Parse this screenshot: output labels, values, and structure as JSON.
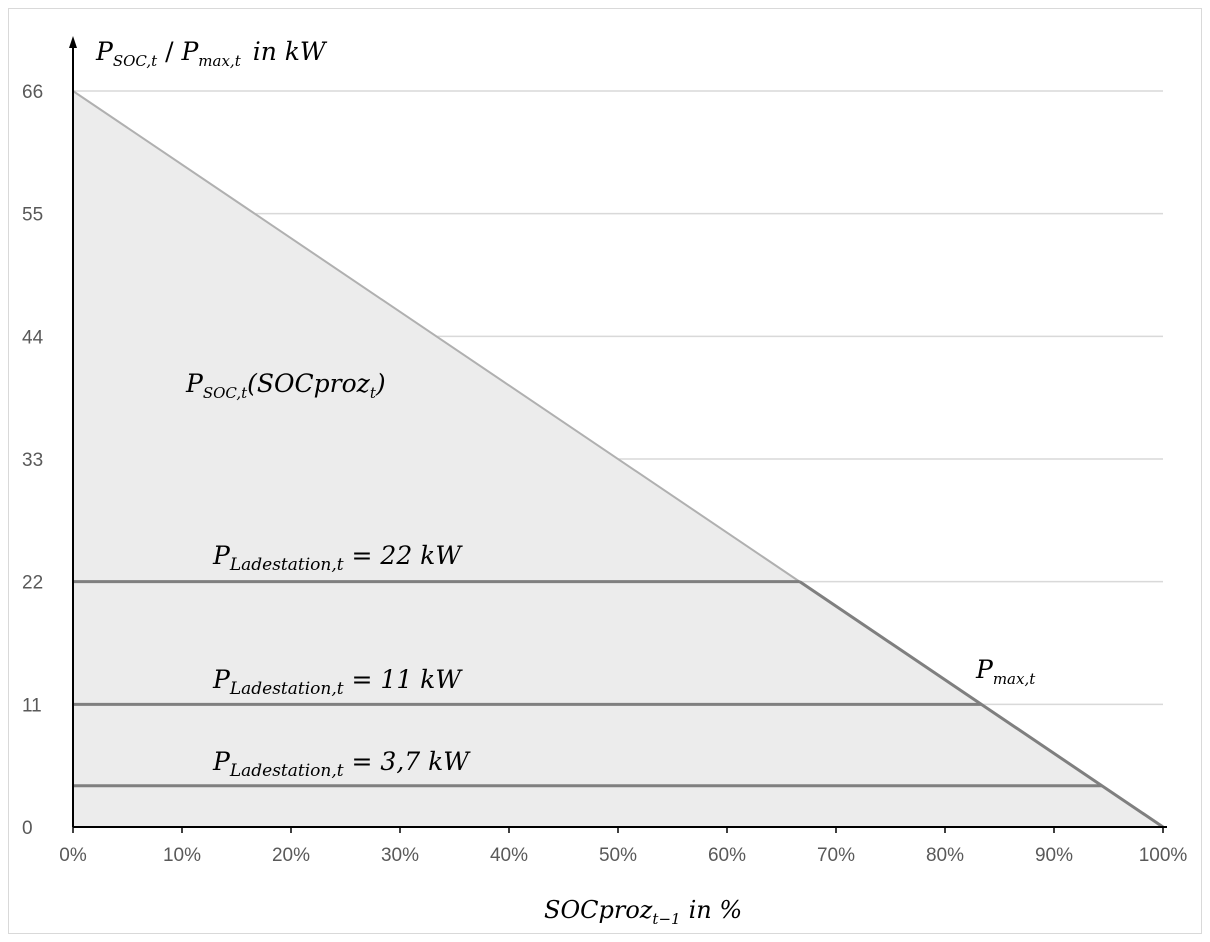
{
  "chart_data": {
    "type": "line",
    "ylabel": {
      "main": "P",
      "sub1": "SOC,t",
      "sep": " / ",
      "main2": "P",
      "sub2": "max,t",
      "unit": "in kW"
    },
    "xlabel": {
      "main": "SOCproz",
      "sub": "t−1",
      "unit": "in %"
    },
    "x_ticks": [
      "0%",
      "10%",
      "20%",
      "30%",
      "40%",
      "50%",
      "60%",
      "70%",
      "80%",
      "90%",
      "100%"
    ],
    "y_ticks": [
      "0",
      "11",
      "22",
      "33",
      "44",
      "55",
      "66"
    ],
    "xlim": [
      0,
      100
    ],
    "ylim": [
      0,
      66
    ],
    "grid": true,
    "colors": {
      "psoc_line": "#b0b0b0",
      "station_line": "#7f7f7f",
      "fill": "#ececec",
      "grid": "#d9d9d9",
      "axis": "#000000"
    },
    "series": [
      {
        "name": "P_SOC,t(SOCproz_t)",
        "x": [
          0,
          100
        ],
        "y": [
          66,
          0
        ]
      },
      {
        "name": "P_Ladestation,t = 22 kW",
        "x": [
          0,
          66.67
        ],
        "y": [
          22,
          22
        ]
      },
      {
        "name": "P_Ladestation,t = 11 kW",
        "x": [
          0,
          83.33
        ],
        "y": [
          11,
          11
        ]
      },
      {
        "name": "P_Ladestation,t = 3,7 kW",
        "x": [
          0,
          94.39
        ],
        "y": [
          3.7,
          3.7
        ]
      }
    ],
    "annotations": {
      "psoc": {
        "main": "P",
        "sub": "SOC,t",
        "arg": "(SOCproz",
        "argsub": "t",
        "close": ")"
      },
      "pmax": {
        "main": "P",
        "sub": "max,t"
      },
      "station_22": {
        "main": "P",
        "sub": "Ladestation,t",
        "eq": " = 22 kW"
      },
      "station_11": {
        "main": "P",
        "sub": "Ladestation,t",
        "eq": " = 11 kW"
      },
      "station_3_7": {
        "main": "P",
        "sub": "Ladestation,t",
        "eq": " = 3,7 kW"
      }
    }
  }
}
